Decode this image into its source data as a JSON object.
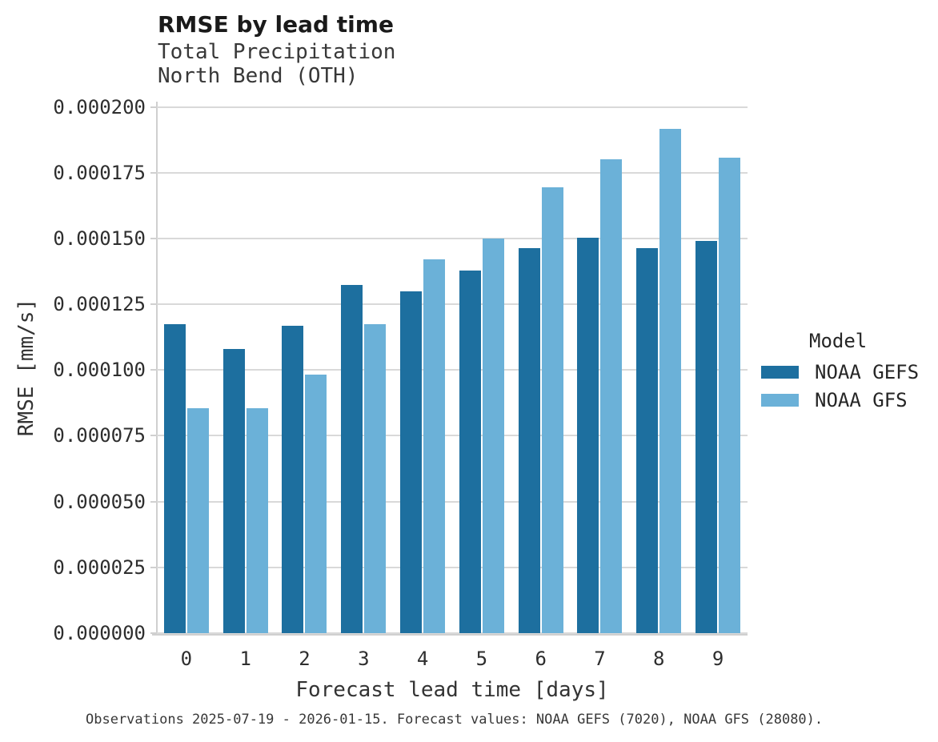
{
  "header": {
    "title": "RMSE by lead time",
    "subtitle1": "Total Precipitation",
    "subtitle2": "North Bend (OTH)"
  },
  "caption": "Observations 2025-07-19 - 2026-01-15. Forecast values: NOAA GEFS (7020), NOAA GFS (28080).",
  "legend": {
    "title": "Model",
    "entries": [
      {
        "label": "NOAA GEFS",
        "color": "#1d6f9f"
      },
      {
        "label": "NOAA GFS",
        "color": "#6bb1d8"
      }
    ]
  },
  "colors": {
    "bar_dark": "#1d6f9f",
    "bar_light": "#6bb1d8",
    "gridline": "#d9d9d9",
    "spine": "#d0d0d0",
    "background": "#ffffff"
  },
  "chart_data": {
    "type": "bar",
    "title": "RMSE by lead time",
    "subtitle": "Total Precipitation — North Bend (OTH)",
    "xlabel": "Forecast lead time [days]",
    "ylabel": "RMSE [mm/s]",
    "categories": [
      "0",
      "1",
      "2",
      "3",
      "4",
      "5",
      "6",
      "7",
      "8",
      "9"
    ],
    "series": [
      {
        "name": "NOAA GEFS",
        "color": "#1d6f9f",
        "values": [
          0.0001173,
          0.0001079,
          0.0001167,
          0.0001322,
          0.0001299,
          0.0001378,
          0.0001464,
          0.0001502,
          0.0001462,
          0.0001491
        ]
      },
      {
        "name": "NOAA GFS",
        "color": "#6bb1d8",
        "values": [
          8.55e-05,
          8.55e-05,
          9.83e-05,
          0.0001175,
          0.000142,
          0.00015,
          0.0001695,
          0.0001801,
          0.0001916,
          0.0001806
        ]
      }
    ],
    "ylim": [
      0,
      0.000202
    ],
    "yticks": [
      0,
      2.5e-05,
      5e-05,
      7.5e-05,
      0.0001,
      0.000125,
      0.00015,
      0.000175,
      0.0002
    ],
    "ytick_labels": [
      "0.000000",
      "0.000025",
      "0.000050",
      "0.000075",
      "0.000100",
      "0.000125",
      "0.000150",
      "0.000175",
      "0.000200"
    ],
    "grid": "horizontal-major-only",
    "legend_position": "right",
    "legend_title": "Model",
    "bar_layout": "grouped-dodge"
  }
}
